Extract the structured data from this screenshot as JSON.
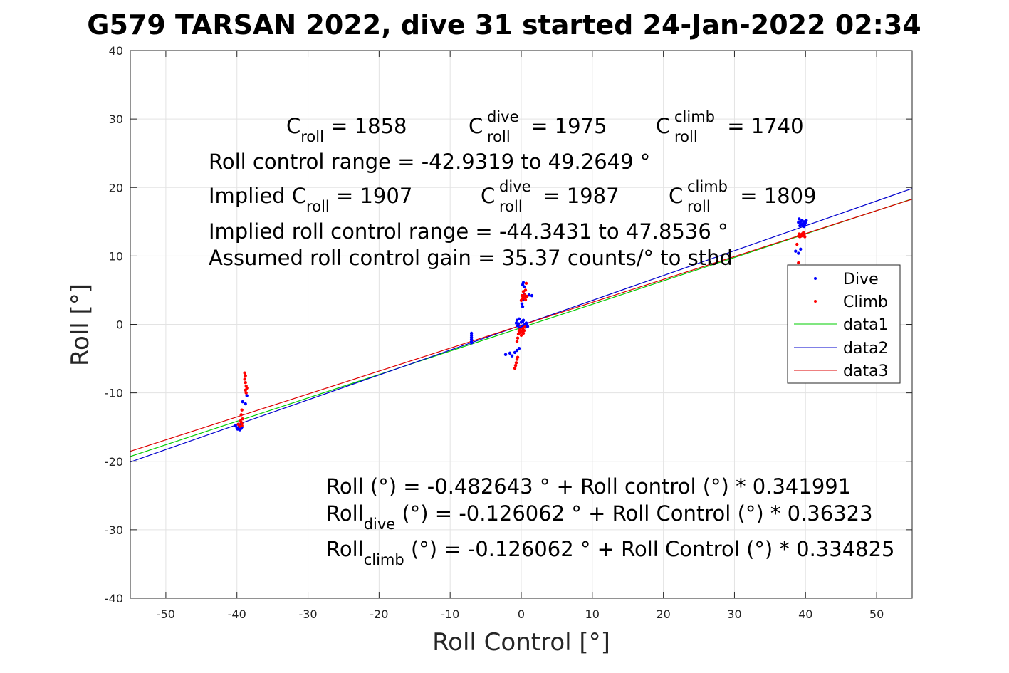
{
  "chart_data": {
    "type": "scatter",
    "title": "G579 TARSAN 2022, dive 31 started 24-Jan-2022 02:34",
    "xlabel": "Roll Control [°]",
    "ylabel": "Roll [°]",
    "xlim": [
      -55,
      55
    ],
    "ylim": [
      -40,
      40
    ],
    "xticks": [
      -50,
      -40,
      -30,
      -20,
      -10,
      0,
      10,
      20,
      30,
      40,
      50
    ],
    "yticks": [
      -40,
      -30,
      -20,
      -10,
      0,
      10,
      20,
      30,
      40
    ],
    "grid": true,
    "legend_position": "right",
    "colors": {
      "dive": "#0000ff",
      "climb": "#ff0000",
      "data1": "#00cc00",
      "data2": "#0000cc",
      "data3": "#dd0000"
    },
    "series": [
      {
        "name": "Dive",
        "kind": "points",
        "points": [
          [
            -40.2,
            -14.8
          ],
          [
            -40.0,
            -15.1
          ],
          [
            -39.9,
            -15.3
          ],
          [
            -39.8,
            -14.6
          ],
          [
            -39.7,
            -15.0
          ],
          [
            -39.6,
            -15.4
          ],
          [
            -39.5,
            -14.9
          ],
          [
            -39.4,
            -15.2
          ],
          [
            -39.5,
            -14.7
          ],
          [
            -39.3,
            -15.0
          ],
          [
            -39.2,
            -11.3
          ],
          [
            -38.8,
            -11.6
          ],
          [
            -38.6,
            -10.4
          ],
          [
            -7.0,
            -1.3
          ],
          [
            -7.0,
            -1.6
          ],
          [
            -7.0,
            -1.9
          ],
          [
            -7.0,
            -2.2
          ],
          [
            -7.0,
            -2.5
          ],
          [
            -7.0,
            -2.7
          ],
          [
            -2.2,
            -4.4
          ],
          [
            -1.6,
            -4.2
          ],
          [
            -1.3,
            -4.6
          ],
          [
            -0.9,
            -4.1
          ],
          [
            -0.6,
            -3.8
          ],
          [
            -0.3,
            -3.5
          ],
          [
            -0.7,
            0.2
          ],
          [
            -0.6,
            0.6
          ],
          [
            -0.5,
            -0.2
          ],
          [
            -0.4,
            0.1
          ],
          [
            -0.3,
            0.8
          ],
          [
            -0.2,
            -0.5
          ],
          [
            0.0,
            0.3
          ],
          [
            0.1,
            -0.3
          ],
          [
            0.2,
            0.4
          ],
          [
            0.3,
            0.6
          ],
          [
            0.4,
            -0.2
          ],
          [
            0.5,
            0.0
          ],
          [
            0.6,
            -0.4
          ],
          [
            0.7,
            0.2
          ],
          [
            0.8,
            0.1
          ],
          [
            0.9,
            -0.3
          ],
          [
            0.2,
            5.8
          ],
          [
            0.3,
            6.1
          ],
          [
            0.4,
            5.5
          ],
          [
            0.1,
            3.0
          ],
          [
            0.2,
            2.6
          ],
          [
            0.3,
            3.6
          ],
          [
            0.5,
            4.4
          ],
          [
            0.6,
            4.1
          ],
          [
            1.1,
            4.3
          ],
          [
            1.5,
            4.2
          ],
          [
            38.6,
            10.7
          ],
          [
            39.0,
            10.4
          ],
          [
            39.3,
            11.0
          ],
          [
            39.0,
            14.9
          ],
          [
            39.1,
            15.4
          ],
          [
            39.2,
            14.4
          ],
          [
            39.3,
            15.0
          ],
          [
            39.4,
            14.6
          ],
          [
            39.5,
            15.2
          ],
          [
            39.6,
            14.4
          ],
          [
            39.7,
            14.8
          ],
          [
            39.8,
            15.0
          ],
          [
            39.9,
            14.5
          ],
          [
            40.0,
            14.9
          ],
          [
            40.1,
            15.2
          ],
          [
            39.8,
            14.3
          ]
        ]
      },
      {
        "name": "Climb",
        "kind": "points",
        "points": [
          [
            -39.8,
            -14.6
          ],
          [
            -39.6,
            -14.9
          ],
          [
            -39.4,
            -14.3
          ],
          [
            -39.3,
            -14.8
          ],
          [
            -39.5,
            -14.1
          ],
          [
            -39.3,
            -14.5
          ],
          [
            -39.2,
            -13.8
          ],
          [
            -39.4,
            -13.2
          ],
          [
            -39.3,
            -12.5
          ],
          [
            -38.9,
            -7.1
          ],
          [
            -38.8,
            -7.5
          ],
          [
            -38.9,
            -8.0
          ],
          [
            -38.8,
            -8.5
          ],
          [
            -38.7,
            -9.0
          ],
          [
            -38.8,
            -9.6
          ],
          [
            -38.7,
            -10.0
          ],
          [
            -38.6,
            -9.3
          ],
          [
            -0.9,
            -6.4
          ],
          [
            -0.8,
            -6.0
          ],
          [
            -0.7,
            -5.6
          ],
          [
            -0.6,
            -5.1
          ],
          [
            -0.5,
            -4.8
          ],
          [
            -0.6,
            -2.5
          ],
          [
            -0.5,
            -2.0
          ],
          [
            -0.4,
            -1.4
          ],
          [
            -0.3,
            -1.0
          ],
          [
            -0.2,
            -0.8
          ],
          [
            -0.1,
            -1.2
          ],
          [
            0.0,
            -1.6
          ],
          [
            0.1,
            -1.0
          ],
          [
            0.2,
            -0.6
          ],
          [
            0.3,
            -1.3
          ],
          [
            0.4,
            -0.9
          ],
          [
            0.5,
            -0.4
          ],
          [
            0.0,
            3.5
          ],
          [
            0.1,
            4.2
          ],
          [
            0.2,
            3.8
          ],
          [
            0.3,
            4.8
          ],
          [
            0.4,
            3.9
          ],
          [
            0.5,
            4.3
          ],
          [
            0.6,
            5.0
          ],
          [
            0.7,
            6.0
          ],
          [
            0.6,
            3.6
          ],
          [
            0.8,
            4.1
          ],
          [
            38.8,
            11.7
          ],
          [
            39.0,
            9.0
          ],
          [
            39.1,
            8.5
          ],
          [
            39.0,
            12.9
          ],
          [
            39.1,
            13.2
          ],
          [
            39.2,
            12.8
          ],
          [
            39.3,
            13.1
          ],
          [
            39.4,
            12.9
          ],
          [
            39.5,
            13.2
          ],
          [
            39.6,
            13.0
          ],
          [
            39.7,
            13.4
          ],
          [
            39.8,
            13.1
          ],
          [
            39.9,
            12.8
          ]
        ]
      },
      {
        "name": "data1",
        "kind": "line",
        "x": [
          -55,
          55
        ],
        "y": [
          -19.29,
          18.33
        ]
      },
      {
        "name": "data2",
        "kind": "line",
        "x": [
          -55,
          55
        ],
        "y": [
          -20.1,
          19.85
        ]
      },
      {
        "name": "data3",
        "kind": "line",
        "x": [
          -55,
          55
        ],
        "y": [
          -18.54,
          18.29
        ]
      }
    ],
    "annotations": {
      "croll": "C",
      "croll_sub": "roll",
      "croll_val": " = 1858",
      "cdive": "C",
      "cdive_sup": "dive",
      "cdive_sub": "roll",
      "cdive_val": " = 1975",
      "cclimb": "C",
      "cclimb_sup": "climb",
      "cclimb_sub": "roll",
      "cclimb_val": " = 1740",
      "range": "Roll control range = -42.9319 to 49.2649 °",
      "implied_pre": "Implied C",
      "implied_sub": "roll",
      "implied_val": " = 1907",
      "icdive": "C",
      "icdive_sup": "dive",
      "icdive_sub": "roll",
      "icdive_val": " = 1987",
      "icclimb": "C",
      "icclimb_sup": "climb",
      "icclimb_sub": "roll",
      "icclimb_val": " = 1809",
      "implied_range": "Implied roll control range = -44.3431 to 47.8536 °",
      "gain": "Assumed roll control gain = 35.37 counts/° to stbd",
      "eq1": "Roll (°) = -0.482643 ° + Roll control (°) * 0.341991",
      "eq2_pre": "Roll",
      "eq2_sub": "dive",
      "eq2_post": " (°) = -0.126062 ° + Roll Control (°) * 0.36323",
      "eq3_pre": "Roll",
      "eq3_sub": "climb",
      "eq3_post": " (°) = -0.126062 ° + Roll Control (°) * 0.334825"
    }
  }
}
